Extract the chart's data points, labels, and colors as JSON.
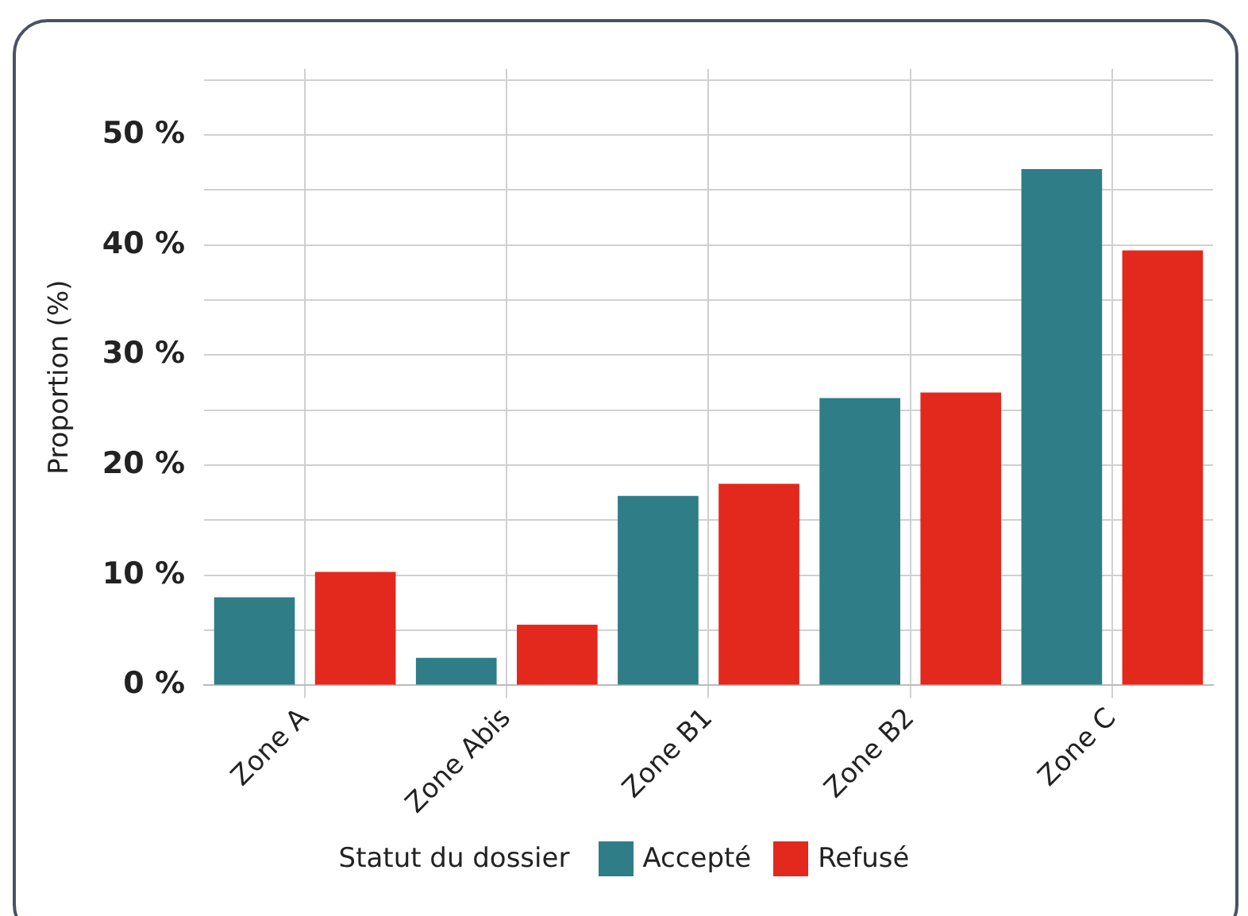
{
  "chart_data": {
    "type": "bar",
    "ylabel": "Proportion (%)",
    "legend_title": "Statut du dossier",
    "legend": "bottom",
    "grid": true,
    "categories": [
      "Zone A",
      "Zone Abis",
      "Zone B1",
      "Zone B2",
      "Zone C"
    ],
    "series": [
      {
        "name": "Accepté",
        "color": "#2f7d87",
        "values": [
          8.0,
          2.5,
          17.2,
          26.1,
          46.9
        ]
      },
      {
        "name": "Refusé",
        "color": "#e3281e",
        "values": [
          10.3,
          5.5,
          18.3,
          26.6,
          39.5
        ]
      }
    ],
    "ylim": [
      0,
      56
    ],
    "yticks": [
      {
        "value": 0,
        "label": "0 %"
      },
      {
        "value": 5,
        "label": null
      },
      {
        "value": 10,
        "label": "10 %"
      },
      {
        "value": 15,
        "label": null
      },
      {
        "value": 20,
        "label": "20 %"
      },
      {
        "value": 25,
        "label": null
      },
      {
        "value": 30,
        "label": "30 %"
      },
      {
        "value": 35,
        "label": null
      },
      {
        "value": 40,
        "label": "40 %"
      },
      {
        "value": 45,
        "label": null
      },
      {
        "value": 50,
        "label": "50 %"
      },
      {
        "value": 55,
        "label": null
      }
    ]
  }
}
